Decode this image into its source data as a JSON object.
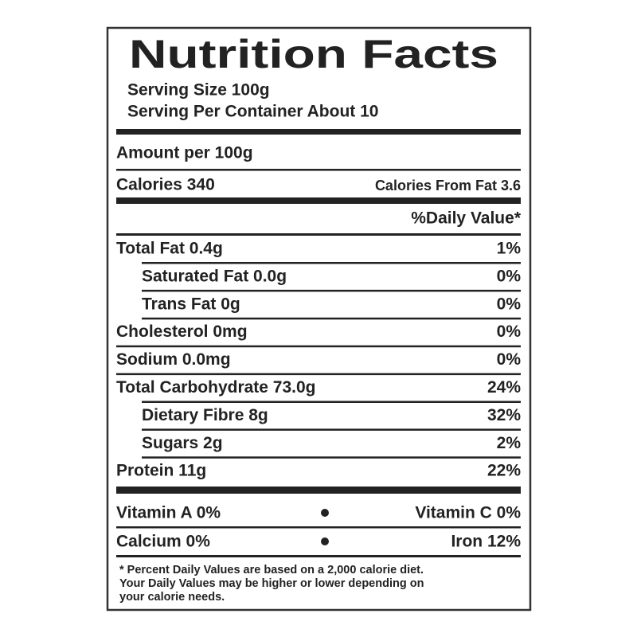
{
  "header": {
    "title": "Nutrition Facts",
    "serving_size": "Serving Size 100g",
    "servings_per_container": "Serving Per Container About 10"
  },
  "amount_per": "Amount per 100g",
  "calories": "Calories 340",
  "calories_from_fat": "Calories From Fat 3.6",
  "daily_value_header": "%Daily Value*",
  "nutrients": [
    {
      "label": "Total Fat 0.4g",
      "percent": "1%",
      "sub": [
        {
          "label": "Saturated Fat 0.0g",
          "percent": "0%"
        },
        {
          "label": "Trans Fat 0g",
          "percent": "0%"
        }
      ]
    },
    {
      "label": "Cholesterol 0mg",
      "percent": "0%",
      "sub": []
    },
    {
      "label": "Sodium 0.0mg",
      "percent": "0%",
      "sub": []
    },
    {
      "label": "Total Carbohydrate 73.0g",
      "percent": "24%",
      "sub": [
        {
          "label": "Dietary Fibre 8g",
          "percent": "32%"
        },
        {
          "label": "Sugars 2g",
          "percent": "2%"
        }
      ]
    },
    {
      "label": "Protein 11g",
      "percent": "22%",
      "sub": []
    }
  ],
  "vitamins": [
    [
      "Vitamin A 0%",
      "Vitamin C 0%"
    ],
    [
      "Calcium 0%",
      "Iron 12%"
    ]
  ],
  "footnote": [
    "* Percent Daily Values are based on a 2,000 calorie diet.",
    "Your Daily Values may be higher or lower depending on",
    "your calorie needs."
  ]
}
